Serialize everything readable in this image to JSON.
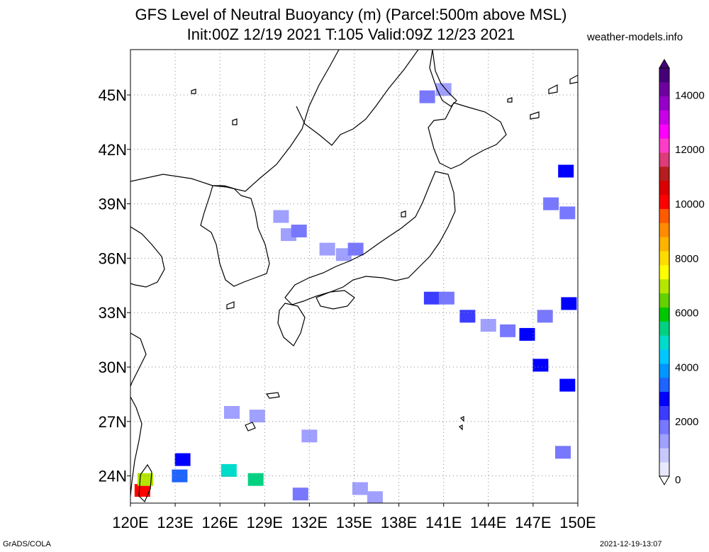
{
  "title": {
    "line1": "GFS Level of Neutral Buoyancy (m) (Parcel:500m above MSL)",
    "line2": "Init:00Z 12/19 2021 T:105 Valid:09Z 12/23 2021"
  },
  "site": "weather-models.info",
  "footer": {
    "left": "GrADS/COLA",
    "right": "2021-12-19-13:07"
  },
  "map": {
    "lon_range": [
      120,
      150
    ],
    "lat_range": [
      22.5,
      47.5
    ],
    "lon_ticks": [
      {
        "value": 120,
        "label": "120E"
      },
      {
        "value": 123,
        "label": "123E"
      },
      {
        "value": 126,
        "label": "126E"
      },
      {
        "value": 129,
        "label": "129E"
      },
      {
        "value": 132,
        "label": "132E"
      },
      {
        "value": 135,
        "label": "135E"
      },
      {
        "value": 138,
        "label": "138E"
      },
      {
        "value": 141,
        "label": "141E"
      },
      {
        "value": 144,
        "label": "144E"
      },
      {
        "value": 147,
        "label": "147E"
      },
      {
        "value": 150,
        "label": "150E"
      }
    ],
    "lat_ticks": [
      {
        "value": 24,
        "label": "24N"
      },
      {
        "value": 27,
        "label": "27N"
      },
      {
        "value": 30,
        "label": "30N"
      },
      {
        "value": 33,
        "label": "33N"
      },
      {
        "value": 36,
        "label": "36N"
      },
      {
        "value": 39,
        "label": "39N"
      },
      {
        "value": 42,
        "label": "42N"
      },
      {
        "value": 45,
        "label": "45N"
      }
    ],
    "grid": "dotted",
    "coast_color": "#000000"
  },
  "colorbar": {
    "min": 0,
    "max": 15000,
    "ticks": [
      {
        "value": 0,
        "label": "0"
      },
      {
        "value": 2000,
        "label": "2000"
      },
      {
        "value": 4000,
        "label": "4000"
      },
      {
        "value": 6000,
        "label": "6000"
      },
      {
        "value": 8000,
        "label": "8000"
      },
      {
        "value": 10000,
        "label": "10000"
      },
      {
        "value": 12000,
        "label": "12000"
      },
      {
        "value": 14000,
        "label": "14000"
      }
    ],
    "colors": [
      "#e8e8ff",
      "#c8c8ff",
      "#a0a0ff",
      "#7878ff",
      "#3c3cff",
      "#0000ff",
      "#1e64ff",
      "#0096ff",
      "#00c8ff",
      "#00dccc",
      "#00d282",
      "#00c800",
      "#64d200",
      "#b4e600",
      "#ffff00",
      "#ffdc00",
      "#ffb400",
      "#ff8c00",
      "#ff5a00",
      "#ff0000",
      "#dc0000",
      "#b41e1e",
      "#dc3c78",
      "#ff3cc8",
      "#ff00ff",
      "#c800e6",
      "#9600c8",
      "#6e00a0",
      "#460078"
    ]
  },
  "patches": [
    {
      "lon": 139.9,
      "lat": 44.9,
      "value": 1600
    },
    {
      "lon": 141.0,
      "lat": 45.3,
      "value": 1500
    },
    {
      "lon": 130.1,
      "lat": 38.3,
      "value": 1500
    },
    {
      "lon": 130.6,
      "lat": 37.3,
      "value": 1200
    },
    {
      "lon": 131.3,
      "lat": 37.5,
      "value": 1800
    },
    {
      "lon": 133.2,
      "lat": 36.5,
      "value": 1500
    },
    {
      "lon": 134.3,
      "lat": 36.2,
      "value": 1200
    },
    {
      "lon": 135.1,
      "lat": 36.5,
      "value": 1700
    },
    {
      "lon": 140.2,
      "lat": 33.8,
      "value": 2200
    },
    {
      "lon": 141.2,
      "lat": 33.8,
      "value": 1800
    },
    {
      "lon": 142.6,
      "lat": 32.8,
      "value": 2200
    },
    {
      "lon": 144.0,
      "lat": 32.3,
      "value": 1500
    },
    {
      "lon": 145.3,
      "lat": 32.0,
      "value": 1800
    },
    {
      "lon": 146.6,
      "lat": 31.8,
      "value": 2600
    },
    {
      "lon": 147.5,
      "lat": 30.1,
      "value": 2700
    },
    {
      "lon": 149.3,
      "lat": 29.0,
      "value": 3000
    },
    {
      "lon": 149.4,
      "lat": 33.5,
      "value": 2600
    },
    {
      "lon": 147.8,
      "lat": 32.8,
      "value": 2000
    },
    {
      "lon": 148.2,
      "lat": 39.0,
      "value": 1800
    },
    {
      "lon": 149.3,
      "lat": 38.5,
      "value": 2000
    },
    {
      "lon": 149.2,
      "lat": 40.8,
      "value": 3000
    },
    {
      "lon": 149.0,
      "lat": 25.3,
      "value": 1800
    },
    {
      "lon": 123.5,
      "lat": 24.9,
      "value": 2600
    },
    {
      "lon": 123.3,
      "lat": 24.0,
      "value": 3300
    },
    {
      "lon": 120.8,
      "lat": 23.2,
      "value": 10000
    },
    {
      "lon": 121.0,
      "lat": 23.8,
      "value": 7000
    },
    {
      "lon": 126.6,
      "lat": 24.3,
      "value": 5000
    },
    {
      "lon": 128.4,
      "lat": 23.8,
      "value": 5300
    },
    {
      "lon": 126.8,
      "lat": 27.5,
      "value": 1500
    },
    {
      "lon": 128.5,
      "lat": 27.3,
      "value": 1500
    },
    {
      "lon": 135.4,
      "lat": 23.3,
      "value": 1500
    },
    {
      "lon": 136.4,
      "lat": 22.8,
      "value": 1400
    },
    {
      "lon": 131.4,
      "lat": 23.0,
      "value": 1800
    },
    {
      "lon": 132.0,
      "lat": 26.2,
      "value": 1500
    }
  ]
}
